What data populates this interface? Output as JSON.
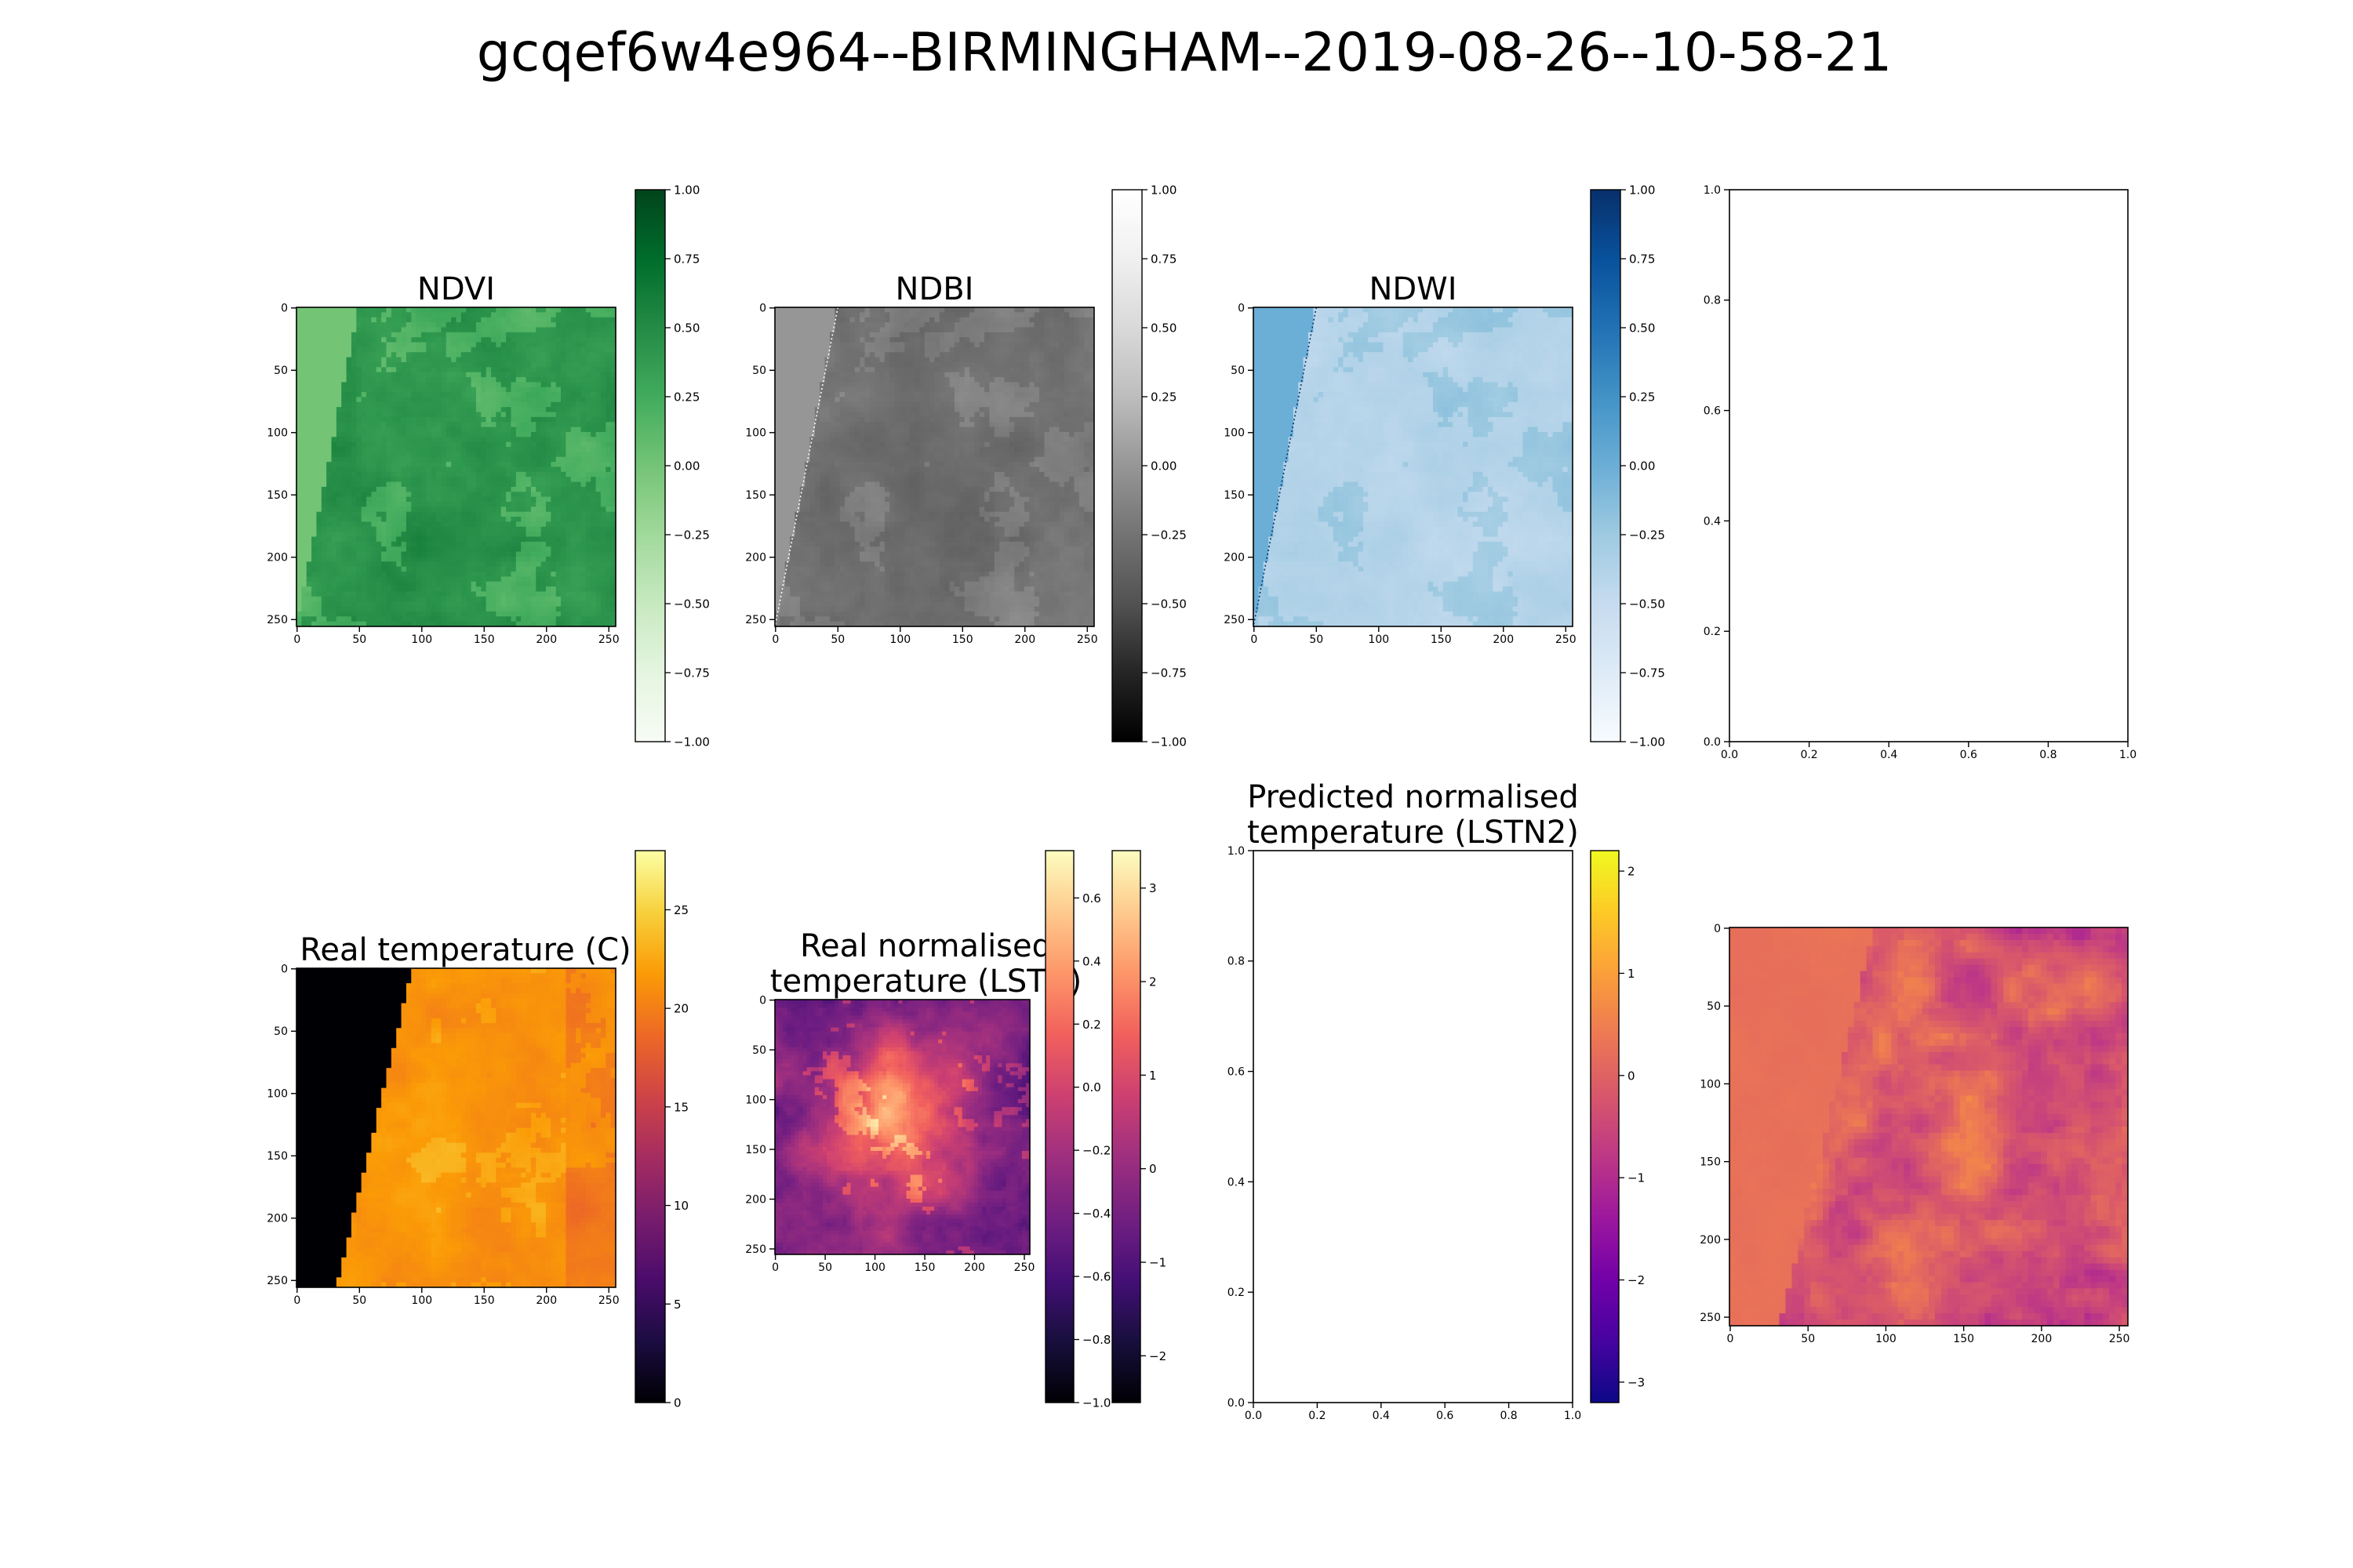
{
  "figure": {
    "title": "gcqef6w4e964--BIRMINGHAM--2019-08-26--10-58-21"
  },
  "colors": {
    "Greens": [
      "#f7fcf5",
      "#e5f5e0",
      "#c7e9c0",
      "#a1d99b",
      "#74c476",
      "#41ab5d",
      "#238b45",
      "#006d2c",
      "#00441b"
    ],
    "Greys": [
      "#000000",
      "#252525",
      "#525252",
      "#737373",
      "#969696",
      "#bdbdbd",
      "#d9d9d9",
      "#f0f0f0",
      "#ffffff"
    ],
    "Blues": [
      "#f7fbff",
      "#deebf7",
      "#c6dbef",
      "#9ecae1",
      "#6baed6",
      "#4292c6",
      "#2171b5",
      "#08519c",
      "#08306b"
    ],
    "inferno": [
      "#000004",
      "#1b0c41",
      "#4a0c6b",
      "#781c6d",
      "#a52c60",
      "#cf4446",
      "#ed6925",
      "#fb9b06",
      "#f7d13d",
      "#fcffa4"
    ],
    "magma": [
      "#000004",
      "#180f3d",
      "#440f76",
      "#721f81",
      "#9e2f7f",
      "#cd4071",
      "#f1605d",
      "#fd9668",
      "#feca8d",
      "#fcfdbf"
    ],
    "plasma": [
      "#0d0887",
      "#46039f",
      "#7201a8",
      "#9c179e",
      "#bd3786",
      "#d8576b",
      "#ed7953",
      "#fb9f3a",
      "#fdca26",
      "#f0f921"
    ]
  },
  "chart_data": [
    {
      "id": "ndvi",
      "type": "heatmap",
      "title": "NDVI",
      "colormap": "Greens",
      "xticks": [
        "0",
        "50",
        "100",
        "150",
        "200",
        "250"
      ],
      "yticks": [
        "0",
        "50",
        "100",
        "150",
        "200",
        "250"
      ],
      "xlim": [
        0,
        256
      ],
      "ylim": [
        256,
        0
      ],
      "colorbar": {
        "range": [
          -1.0,
          1.0
        ],
        "ticks": [
          "1.00",
          "0.75",
          "0.50",
          "0.25",
          "0.00",
          "−0.25",
          "−0.50",
          "−0.75",
          "−1.00"
        ]
      },
      "nodata_value": 0.0,
      "nodata_boundary_x": [
        50,
        0
      ]
    },
    {
      "id": "ndbi",
      "type": "heatmap",
      "title": "NDBI",
      "colormap": "Greys",
      "xticks": [
        "0",
        "50",
        "100",
        "150",
        "200",
        "250"
      ],
      "yticks": [
        "0",
        "50",
        "100",
        "150",
        "200",
        "250"
      ],
      "xlim": [
        0,
        256
      ],
      "ylim": [
        256,
        0
      ],
      "colorbar": {
        "range": [
          -1.0,
          1.0
        ],
        "ticks": [
          "1.00",
          "0.75",
          "0.50",
          "0.25",
          "0.00",
          "−0.25",
          "−0.50",
          "−0.75",
          "−1.00"
        ]
      },
      "nodata_value": 0.0,
      "nodata_boundary_x": [
        50,
        0
      ]
    },
    {
      "id": "ndwi",
      "type": "heatmap",
      "title": "NDWI",
      "colormap": "Blues",
      "xticks": [
        "0",
        "50",
        "100",
        "150",
        "200",
        "250"
      ],
      "yticks": [
        "0",
        "50",
        "100",
        "150",
        "200",
        "250"
      ],
      "xlim": [
        0,
        256
      ],
      "ylim": [
        256,
        0
      ],
      "colorbar": {
        "range": [
          -1.0,
          1.0
        ],
        "ticks": [
          "1.00",
          "0.75",
          "0.50",
          "0.25",
          "0.00",
          "−0.25",
          "−0.50",
          "−0.75",
          "−1.00"
        ]
      },
      "nodata_value": 0.0,
      "nodata_boundary_x": [
        50,
        0
      ]
    },
    {
      "id": "empty-top",
      "type": "scatter",
      "title": "",
      "xticks": [
        "0.0",
        "0.2",
        "0.4",
        "0.6",
        "0.8",
        "1.0"
      ],
      "yticks": [
        "0.0",
        "0.2",
        "0.4",
        "0.6",
        "0.8",
        "1.0"
      ],
      "xlim": [
        0,
        1
      ],
      "ylim": [
        0,
        1
      ],
      "series": []
    },
    {
      "id": "real-temp",
      "type": "heatmap",
      "title": "Real temperature (C)",
      "colormap": "inferno",
      "xticks": [
        "0",
        "50",
        "100",
        "150",
        "200",
        "250"
      ],
      "yticks": [
        "0",
        "50",
        "100",
        "150",
        "200",
        "250"
      ],
      "xlim": [
        0,
        256
      ],
      "ylim": [
        256,
        0
      ],
      "colorbar": {
        "range": [
          0,
          28
        ],
        "ticks": [
          "25",
          "20",
          "15",
          "10",
          "5",
          "0"
        ]
      },
      "nodata_value": 0.0,
      "nodata_boundary_x": [
        93,
        32
      ]
    },
    {
      "id": "real-lstn",
      "type": "heatmap",
      "title": "Real normalised temperature (LSTN)",
      "title_lines": [
        "Real normalised",
        "temperature (LSTN)"
      ],
      "colormap": "magma",
      "xticks": [
        "0",
        "50",
        "100",
        "150",
        "200",
        "250"
      ],
      "yticks": [
        "0",
        "50",
        "100",
        "150",
        "200",
        "250"
      ],
      "xlim": [
        0,
        256
      ],
      "ylim": [
        256,
        0
      ],
      "colorbars": [
        {
          "range": [
            -1.0,
            0.75
          ],
          "ticks": [
            "0.6",
            "0.4",
            "0.2",
            "0.0",
            "−0.2",
            "−0.4",
            "−0.6",
            "−0.8",
            "−1.0"
          ]
        },
        {
          "range": [
            -2.5,
            3.4
          ],
          "ticks": [
            "3",
            "2",
            "1",
            "0",
            "−1",
            "−2"
          ]
        }
      ]
    },
    {
      "id": "pred-lstn2",
      "type": "scatter",
      "title": "Predicted normalised temperature (LSTN2)",
      "title_lines": [
        "Predicted normalised",
        "temperature (LSTN2)"
      ],
      "colormap": "plasma",
      "xticks": [
        "0.0",
        "0.2",
        "0.4",
        "0.6",
        "0.8",
        "1.0"
      ],
      "yticks": [
        "0.0",
        "0.2",
        "0.4",
        "0.6",
        "0.8",
        "1.0"
      ],
      "xlim": [
        0,
        1
      ],
      "ylim": [
        0,
        1
      ],
      "series": [],
      "colorbar": {
        "range": [
          -3.2,
          2.2
        ],
        "ticks": [
          "2",
          "1",
          "0",
          "−1",
          "−2",
          "−3"
        ]
      }
    },
    {
      "id": "pred-map",
      "type": "heatmap",
      "title": "",
      "colormap": "plasma",
      "xticks": [
        "0",
        "50",
        "100",
        "150",
        "200",
        "250"
      ],
      "yticks": [
        "0",
        "50",
        "100",
        "150",
        "200",
        "250"
      ],
      "xlim": [
        0,
        256
      ],
      "ylim": [
        256,
        0
      ],
      "nodata_boundary_x": [
        93,
        32
      ]
    }
  ]
}
